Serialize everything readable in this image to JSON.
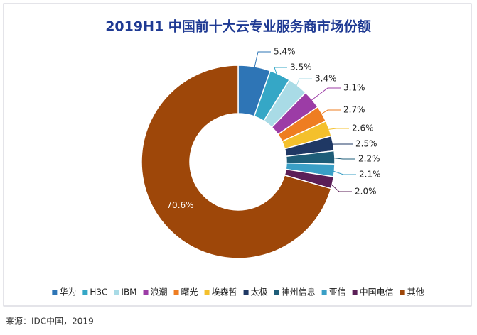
{
  "chart_data": {
    "type": "donut",
    "title": "2019H1 中国前十大云专业服务商市场份额",
    "categories": [
      "华为",
      "H3C",
      "IBM",
      "浪潮",
      "曙光",
      "埃森哲",
      "太极",
      "神州信息",
      "亚信",
      "中国电信",
      "其他"
    ],
    "values": [
      5.4,
      3.5,
      3.4,
      3.1,
      2.7,
      2.6,
      2.5,
      2.2,
      2.1,
      2.0,
      70.6
    ],
    "value_labels": [
      "5.4%",
      "3.5%",
      "3.4%",
      "3.1%",
      "2.7%",
      "2.6%",
      "2.5%",
      "2.2%",
      "2.1%",
      "2.0%",
      "70.6%"
    ],
    "colors": [
      "#2e75b6",
      "#35a7c6",
      "#a9dbe6",
      "#9c3ca6",
      "#ee7d22",
      "#f4c02c",
      "#1f3864",
      "#1e5d78",
      "#3a9fc6",
      "#5b1f57",
      "#9e4709"
    ],
    "legend": "bottom"
  },
  "source": "来源：IDC中国，2019"
}
